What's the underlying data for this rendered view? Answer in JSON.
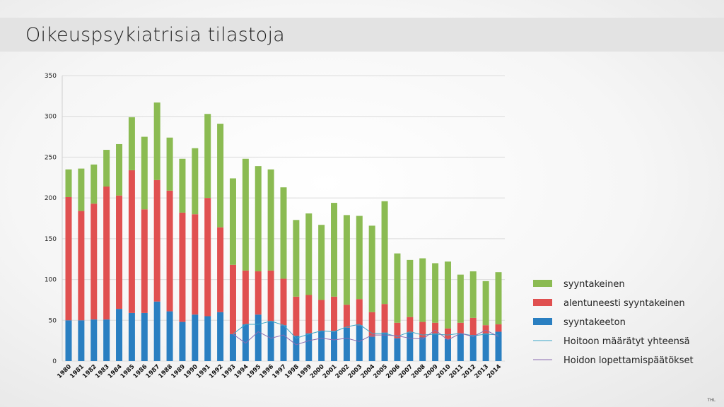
{
  "header": {
    "title": "Oikeuspsykiatrisia tilastoja"
  },
  "footer": {
    "logo_text": "THL"
  },
  "chart_data": {
    "type": "bar",
    "stacked": true,
    "title": "",
    "xlabel": "",
    "ylabel": "",
    "ylim": [
      0,
      350
    ],
    "yticks": [
      0,
      50,
      100,
      150,
      200,
      250,
      300,
      350
    ],
    "grid": true,
    "legend_position": "right",
    "categories": [
      "1980",
      "1981",
      "1982",
      "1983",
      "1984",
      "1985",
      "1986",
      "1987",
      "1988",
      "1989",
      "1990",
      "1991",
      "1992",
      "1993",
      "1994",
      "1995",
      "1996",
      "1997",
      "1998",
      "1999",
      "2000",
      "2001",
      "2002",
      "2003",
      "2004",
      "2005",
      "2006",
      "2007",
      "2008",
      "2009",
      "2010",
      "2011",
      "2012",
      "2013",
      "2014"
    ],
    "series": [
      {
        "name": "syyntakeeton",
        "kind": "bar",
        "color": "#2a7fc1",
        "values": [
          50,
          50,
          51,
          51,
          64,
          59,
          59,
          73,
          61,
          48,
          57,
          55,
          60,
          33,
          45,
          57,
          49,
          44,
          31,
          34,
          37,
          37,
          41,
          44,
          30,
          35,
          28,
          35,
          29,
          34,
          27,
          34,
          32,
          34,
          36
        ]
      },
      {
        "name": "alentuneesti syyntakeinen",
        "kind": "bar",
        "color": "#e05050",
        "values": [
          151,
          134,
          142,
          163,
          139,
          175,
          127,
          149,
          148,
          134,
          123,
          145,
          104,
          85,
          66,
          53,
          62,
          57,
          48,
          47,
          38,
          42,
          28,
          32,
          30,
          35,
          19,
          19,
          19,
          13,
          13,
          13,
          21,
          10,
          9
        ]
      },
      {
        "name": "syyntakeinen",
        "kind": "bar",
        "color": "#8bbb52",
        "values": [
          34,
          52,
          48,
          45,
          63,
          65,
          89,
          95,
          65,
          66,
          81,
          103,
          127,
          106,
          137,
          129,
          124,
          112,
          94,
          100,
          92,
          115,
          110,
          102,
          106,
          126,
          85,
          70,
          78,
          73,
          82,
          59,
          57,
          54,
          64
        ]
      },
      {
        "name": "Hoitoon määrätyt yhteensä",
        "kind": "line",
        "color": "#3aa6c8",
        "values": [
          null,
          null,
          null,
          null,
          null,
          null,
          null,
          null,
          null,
          null,
          null,
          null,
          null,
          33,
          45,
          45,
          49,
          44,
          28,
          33,
          37,
          36,
          42,
          45,
          34,
          34,
          30,
          36,
          32,
          33,
          32,
          34,
          31,
          33,
          32
        ]
      },
      {
        "name": "Hoidon lopettamispäätökset",
        "kind": "line",
        "color": "#8a6bb0",
        "values": [
          null,
          null,
          null,
          null,
          null,
          null,
          null,
          null,
          null,
          null,
          null,
          null,
          null,
          33,
          22,
          36,
          28,
          32,
          20,
          25,
          28,
          26,
          28,
          24,
          32,
          32,
          31,
          28,
          27,
          38,
          26,
          34,
          30,
          38,
          30
        ]
      }
    ],
    "legend_order": [
      2,
      1,
      0,
      3,
      4
    ]
  }
}
